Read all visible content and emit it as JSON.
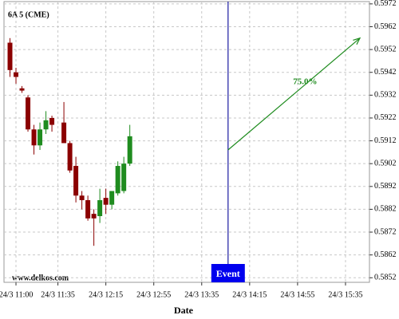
{
  "chart_data": {
    "type": "candlestick",
    "title": "6A 5 (CME)",
    "watermark": "www.delkos.com",
    "x_label": "Date",
    "x": [
      "24/3 10:55",
      "24/3 11:00",
      "24/3 11:05",
      "24/3 11:10",
      "24/3 11:15",
      "24/3 11:20",
      "24/3 11:25",
      "24/3 11:30",
      "24/3 11:40",
      "24/3 11:45",
      "24/3 11:50",
      "24/3 11:55",
      "24/3 12:00",
      "24/3 12:05",
      "24/3 12:10",
      "24/3 12:15",
      "24/3 12:20",
      "24/3 12:25",
      "24/3 12:30",
      "24/3 12:35"
    ],
    "open": [
      0.5955,
      0.5942,
      0.5935,
      0.5931,
      0.5917,
      0.591,
      0.5917,
      0.5922,
      0.592,
      0.5911,
      0.5901,
      0.5888,
      0.5886,
      0.588,
      0.5879,
      0.5887,
      0.5884,
      0.5889,
      0.589,
      0.5902
    ],
    "high": [
      0.5957,
      0.5944,
      0.5936,
      0.5932,
      0.5919,
      0.592,
      0.5925,
      0.5923,
      0.5929,
      0.5912,
      0.5905,
      0.589,
      0.5888,
      0.5882,
      0.5891,
      0.5891,
      0.589,
      0.5903,
      0.5905,
      0.5919
    ],
    "low": [
      0.594,
      0.5937,
      0.5933,
      0.5916,
      0.5906,
      0.5908,
      0.5915,
      0.5916,
      0.5911,
      0.5898,
      0.5885,
      0.5882,
      0.5877,
      0.5866,
      0.5876,
      0.588,
      0.5882,
      0.5888,
      0.5889,
      0.5901
    ],
    "close": [
      0.5943,
      0.594,
      0.5934,
      0.5917,
      0.591,
      0.5917,
      0.5921,
      0.5919,
      0.5911,
      0.5899,
      0.5888,
      0.5886,
      0.5878,
      0.5878,
      0.5886,
      0.5884,
      0.589,
      0.5901,
      0.5902,
      0.5914
    ],
    "up_color": "#1f8c1f",
    "down_color": "#8b0000",
    "xlim": [
      "24/3 10:50",
      "24/3 15:55"
    ],
    "xticks": [
      "24/3 11:00",
      "24/3 11:35",
      "24/3 12:15",
      "24/3 12:55",
      "24/3 13:35",
      "24/3 14:15",
      "24/3 14:55",
      "24/3 15:35"
    ],
    "ylim": [
      0.585,
      0.5973
    ],
    "yticks": [
      0.5852,
      0.5862,
      0.5872,
      0.5882,
      0.5892,
      0.5902,
      0.5912,
      0.5922,
      0.5932,
      0.5942,
      0.5952,
      0.5962,
      0.5972
    ],
    "grid": true,
    "event": {
      "x": "24/3 13:57",
      "label": "Event",
      "color": "#1a1aa0"
    },
    "arrow": {
      "from": [
        "24/3 13:57",
        0.5908
      ],
      "to": [
        "24/3 15:47",
        0.5957
      ],
      "label": "75.0%",
      "color": "#1f8c1f"
    }
  }
}
